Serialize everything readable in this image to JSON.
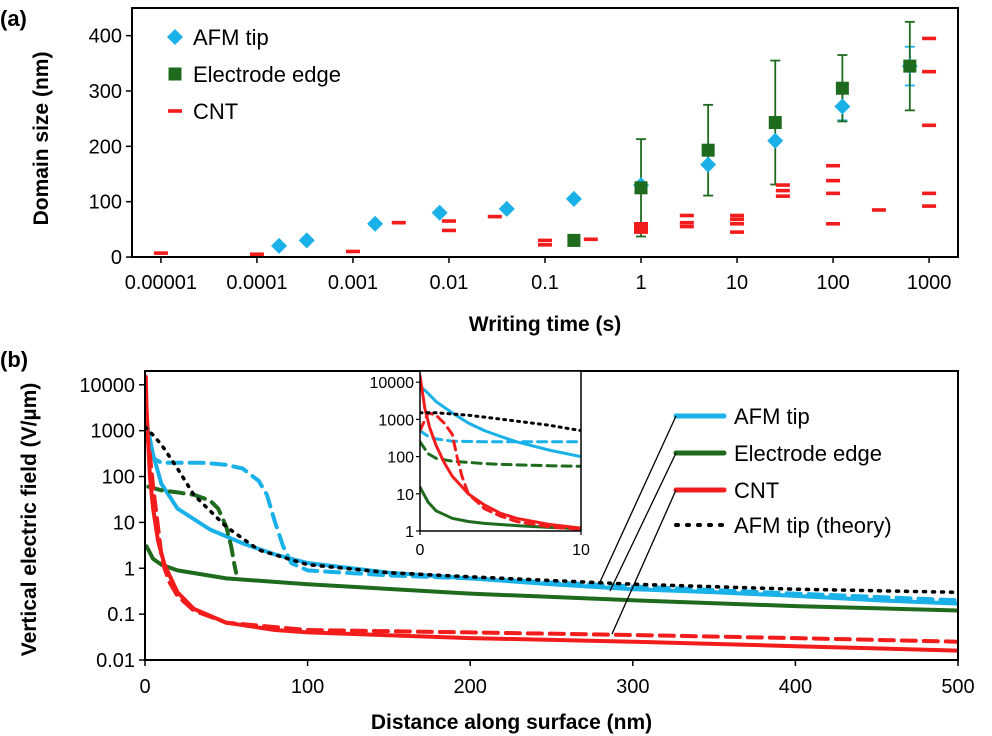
{
  "colors": {
    "afm": "#1ab0e8",
    "electrode": "#1e6b1e",
    "cnt": "#f21c1c",
    "theory": "#000000"
  },
  "chart_data": [
    {
      "panel": "(a)",
      "type": "scatter",
      "xscale": "log",
      "xlabel": "Writing time (s)",
      "ylabel": "Domain size (nm)",
      "xlim": [
        5e-06,
        2000
      ],
      "ylim": [
        0,
        450
      ],
      "xticks": [
        1e-05,
        0.0001,
        0.001,
        0.01,
        0.1,
        1,
        10,
        100,
        1000
      ],
      "xtick_labels": [
        "0.00001",
        "0.0001",
        "0.001",
        "0.01",
        "0.1",
        "1",
        "10",
        "100",
        "1000"
      ],
      "yticks": [
        0,
        100,
        200,
        300,
        400
      ],
      "ytick_labels": [
        "0",
        "100",
        "200",
        "300",
        "400"
      ],
      "legend": [
        "AFM tip",
        "Electrode edge",
        "CNT"
      ],
      "series": [
        {
          "name": "AFM tip",
          "marker": "diamond",
          "points": [
            [
              0.00017,
              20
            ],
            [
              0.00033,
              30
            ],
            [
              0.0017,
              60
            ],
            [
              0.008,
              80
            ],
            [
              0.04,
              87
            ],
            [
              0.2,
              105
            ],
            [
              1,
              130
            ],
            [
              5,
              167
            ],
            [
              25,
              210
            ],
            [
              125,
              272
            ],
            [
              630,
              345
            ]
          ],
          "errors": [
            0,
            0,
            0,
            0,
            0,
            0,
            0,
            0,
            0,
            25,
            35
          ]
        },
        {
          "name": "Electrode edge",
          "marker": "square",
          "points": [
            [
              0.2,
              30
            ],
            [
              1,
              125
            ],
            [
              5,
              193
            ],
            [
              25,
              243
            ],
            [
              125,
              305
            ],
            [
              630,
              345
            ]
          ],
          "errors": [
            0,
            88,
            82,
            112,
            60,
            80
          ]
        },
        {
          "name": "CNT",
          "marker": "dash",
          "points": [
            [
              1e-05,
              7
            ],
            [
              0.0001,
              5
            ],
            [
              0.001,
              10
            ],
            [
              0.003,
              62
            ],
            [
              0.01,
              65
            ],
            [
              0.01,
              48
            ],
            [
              0.03,
              73
            ],
            [
              0.1,
              30
            ],
            [
              0.1,
              22
            ],
            [
              0.3,
              32
            ],
            [
              1,
              60
            ],
            [
              1,
              55
            ],
            [
              1,
              50
            ],
            [
              1,
              45
            ],
            [
              3,
              75
            ],
            [
              3,
              62
            ],
            [
              3,
              55
            ],
            [
              10,
              75
            ],
            [
              10,
              68
            ],
            [
              10,
              60
            ],
            [
              10,
              45
            ],
            [
              30,
              130
            ],
            [
              30,
              120
            ],
            [
              30,
              110
            ],
            [
              100,
              165
            ],
            [
              100,
              138
            ],
            [
              100,
              115
            ],
            [
              100,
              60
            ],
            [
              300,
              85
            ],
            [
              1000,
              395
            ],
            [
              1000,
              335
            ],
            [
              1000,
              238
            ],
            [
              1000,
              115
            ],
            [
              1000,
              92
            ]
          ]
        }
      ]
    },
    {
      "panel": "(b)",
      "type": "line",
      "yscale": "log",
      "xlabel": "Distance along surface (nm)",
      "ylabel": "Vertical electric field (V/µm)",
      "xlim": [
        0,
        500
      ],
      "ylim": [
        0.01,
        20000
      ],
      "xticks": [
        0,
        100,
        200,
        300,
        400,
        500
      ],
      "xtick_labels": [
        "0",
        "100",
        "200",
        "300",
        "400",
        "500"
      ],
      "yticks": [
        0.01,
        0.1,
        1,
        10,
        100,
        1000,
        10000
      ],
      "ytick_labels": [
        "0.01",
        "0.1",
        "1",
        "10",
        "100",
        "1000",
        "10000"
      ],
      "legend": [
        "AFM tip",
        "Electrode edge",
        "CNT",
        "AFM tip (theory)"
      ],
      "series": [
        {
          "name": "AFM tip",
          "style": "solid",
          "x": [
            1,
            5,
            10,
            20,
            40,
            60,
            80,
            100,
            150,
            200,
            250,
            300,
            350,
            400,
            450,
            500
          ],
          "y": [
            1500,
            300,
            70,
            20,
            7,
            3.5,
            2,
            1.3,
            0.8,
            0.6,
            0.45,
            0.35,
            0.3,
            0.25,
            0.2,
            0.17
          ]
        },
        {
          "name": "AFM tip",
          "style": "dashed",
          "x": [
            1,
            5,
            10,
            20,
            35,
            50,
            60,
            70,
            75,
            80,
            85,
            90,
            100,
            150,
            200,
            300,
            400,
            500
          ],
          "y": [
            1000,
            250,
            200,
            200,
            200,
            180,
            150,
            80,
            40,
            10,
            3,
            1.3,
            0.9,
            0.7,
            0.6,
            0.4,
            0.28,
            0.2
          ]
        },
        {
          "name": "Electrode edge",
          "style": "solid",
          "x": [
            1,
            5,
            10,
            20,
            50,
            100,
            200,
            300,
            400,
            500
          ],
          "y": [
            3,
            1.6,
            1.2,
            0.9,
            0.6,
            0.45,
            0.28,
            0.2,
            0.15,
            0.12
          ]
        },
        {
          "name": "Electrode edge",
          "style": "dashed",
          "x": [
            2,
            10,
            20,
            30,
            40,
            45,
            50,
            53,
            55,
            56
          ],
          "y": [
            60,
            50,
            45,
            40,
            30,
            20,
            8,
            3,
            1.2,
            0.8
          ]
        },
        {
          "name": "CNT",
          "style": "solid",
          "x": [
            0.5,
            1,
            2,
            3,
            5,
            8,
            12,
            20,
            30,
            50,
            80,
            100,
            200,
            300,
            400,
            500
          ],
          "y": [
            15000,
            3000,
            500,
            100,
            20,
            4,
            1.2,
            0.3,
            0.13,
            0.065,
            0.045,
            0.04,
            0.03,
            0.025,
            0.02,
            0.016
          ]
        },
        {
          "name": "CNT",
          "style": "dashed",
          "x": [
            1,
            3,
            5,
            8,
            10,
            12,
            15,
            20,
            30,
            50,
            100,
            200,
            300,
            400,
            500
          ],
          "y": [
            1000,
            300,
            60,
            8,
            2,
            1,
            0.5,
            0.25,
            0.12,
            0.065,
            0.045,
            0.04,
            0.035,
            0.03,
            0.025
          ]
        },
        {
          "name": "AFM tip (theory)",
          "style": "dotted",
          "x": [
            0,
            5,
            10,
            20,
            30,
            50,
            70,
            100,
            150,
            200,
            300,
            400,
            500
          ],
          "y": [
            1200,
            800,
            500,
            150,
            40,
            8,
            2.5,
            1.2,
            0.8,
            0.65,
            0.45,
            0.35,
            0.3
          ]
        }
      ]
    },
    {
      "panel": "(b) inset",
      "type": "line",
      "yscale": "log",
      "xlim": [
        0,
        10
      ],
      "ylim": [
        1,
        20000
      ],
      "xticks": [
        0,
        10
      ],
      "xtick_labels": [
        "0",
        "10"
      ],
      "yticks": [
        1,
        10,
        100,
        1000,
        10000
      ],
      "ytick_labels": [
        "1",
        "10",
        "100",
        "1000",
        "10000"
      ],
      "series": [
        {
          "name": "AFM tip",
          "style": "solid",
          "x": [
            0,
            0.5,
            1,
            2,
            3,
            4,
            5,
            6,
            8,
            10
          ],
          "y": [
            8000,
            5000,
            3000,
            1500,
            800,
            500,
            350,
            250,
            150,
            100
          ]
        },
        {
          "name": "AFM tip",
          "style": "dashed",
          "x": [
            0,
            0.5,
            1,
            2,
            4,
            6,
            8,
            10
          ],
          "y": [
            500,
            350,
            300,
            260,
            250,
            250,
            250,
            250
          ]
        },
        {
          "name": "Electrode edge",
          "style": "solid",
          "x": [
            0,
            0.5,
            1,
            2,
            3,
            4,
            6,
            8,
            10
          ],
          "y": [
            15,
            6,
            3.5,
            2.2,
            1.8,
            1.6,
            1.4,
            1.25,
            1.15
          ]
        },
        {
          "name": "Electrode edge",
          "style": "dashed",
          "x": [
            0,
            0.5,
            1,
            2,
            4,
            6,
            8,
            10
          ],
          "y": [
            250,
            120,
            90,
            75,
            65,
            60,
            57,
            55
          ]
        },
        {
          "name": "CNT",
          "style": "solid",
          "x": [
            0,
            0.3,
            0.6,
            1,
            1.5,
            2,
            3,
            4,
            5,
            6,
            8,
            10
          ],
          "y": [
            15000,
            2000,
            600,
            200,
            70,
            30,
            10,
            5,
            3,
            2.2,
            1.5,
            1.2
          ]
        },
        {
          "name": "CNT",
          "style": "dashed",
          "x": [
            0,
            0.5,
            1,
            1.5,
            2,
            2.3,
            2.6,
            3,
            4,
            5,
            6,
            8,
            10
          ],
          "y": [
            500,
            1500,
            1300,
            800,
            400,
            100,
            30,
            10,
            4,
            2.5,
            1.8,
            1.3,
            1.1
          ]
        },
        {
          "name": "AFM tip (theory)",
          "style": "dotted",
          "x": [
            0,
            1,
            2,
            3,
            4,
            6,
            8,
            10
          ],
          "y": [
            1500,
            1500,
            1400,
            1300,
            1150,
            900,
            700,
            500
          ]
        }
      ]
    }
  ]
}
